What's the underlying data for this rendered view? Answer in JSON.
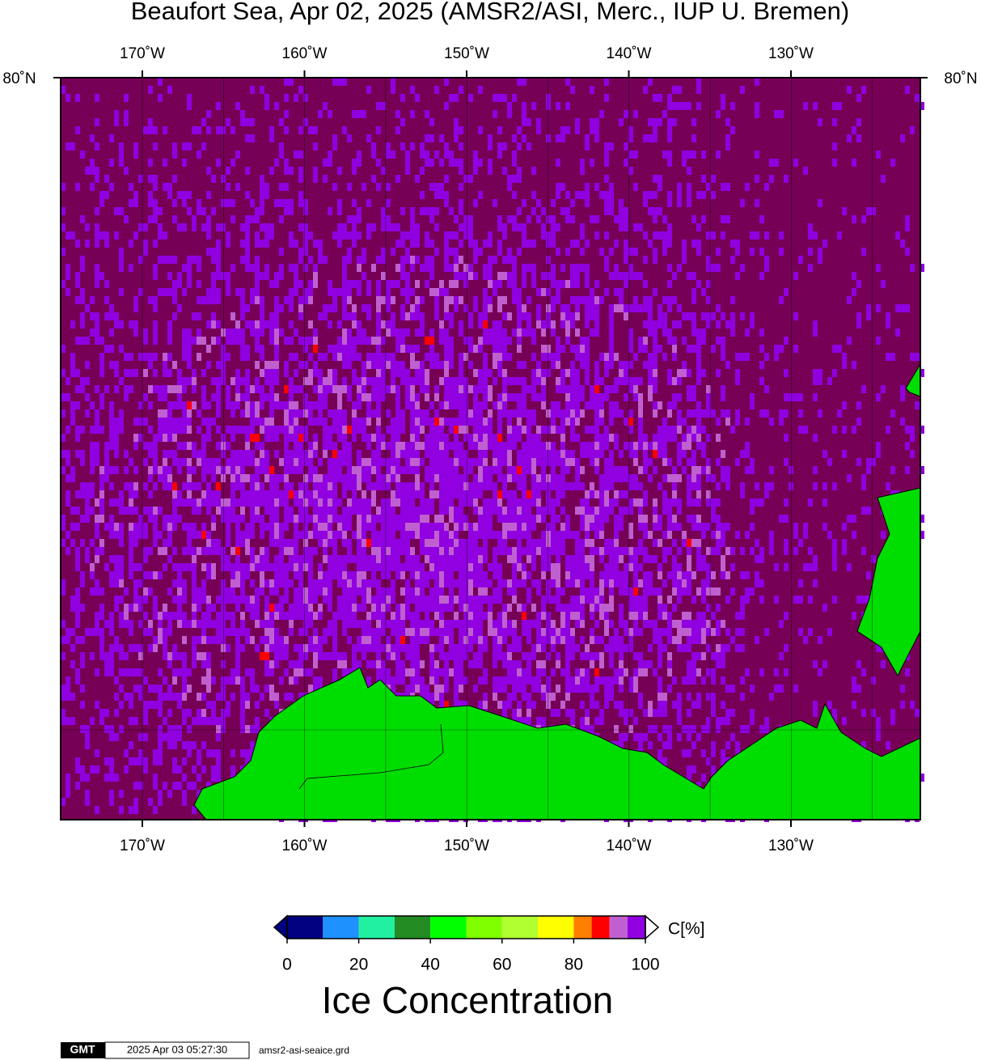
{
  "header": {
    "title": "Beaufort Sea, Apr 02, 2025 (AMSR2/ASI, Merc., IUP U. Bremen)"
  },
  "map": {
    "lon_labels": [
      "170˚W",
      "160˚W",
      "150˚W",
      "140˚W",
      "130˚W"
    ],
    "lat_label": "80˚N",
    "ocean_color": "#760055",
    "ice_color": "#9000e0",
    "ice_light_color": "#c060d0",
    "land_color": "#00dd00"
  },
  "colorbar": {
    "bounds": [
      0,
      10,
      20,
      30,
      40,
      50,
      60,
      70,
      80,
      85,
      90,
      95,
      100
    ],
    "colors": [
      "#000080",
      "#1e90ff",
      "#20f0a0",
      "#228b22",
      "#00ff00",
      "#80ff00",
      "#b0ff30",
      "#ffff00",
      "#ff8000",
      "#ff0000",
      "#c060d0",
      "#9000e0"
    ],
    "ticks": [
      0,
      20,
      40,
      60,
      80,
      100
    ],
    "unit": "C[%]",
    "title": "Ice Concentration"
  },
  "footer": {
    "logo": "GMT",
    "timestamp": "2025 Apr 03 05:27:30",
    "file": "amsr2-asi-seaice.grd"
  }
}
